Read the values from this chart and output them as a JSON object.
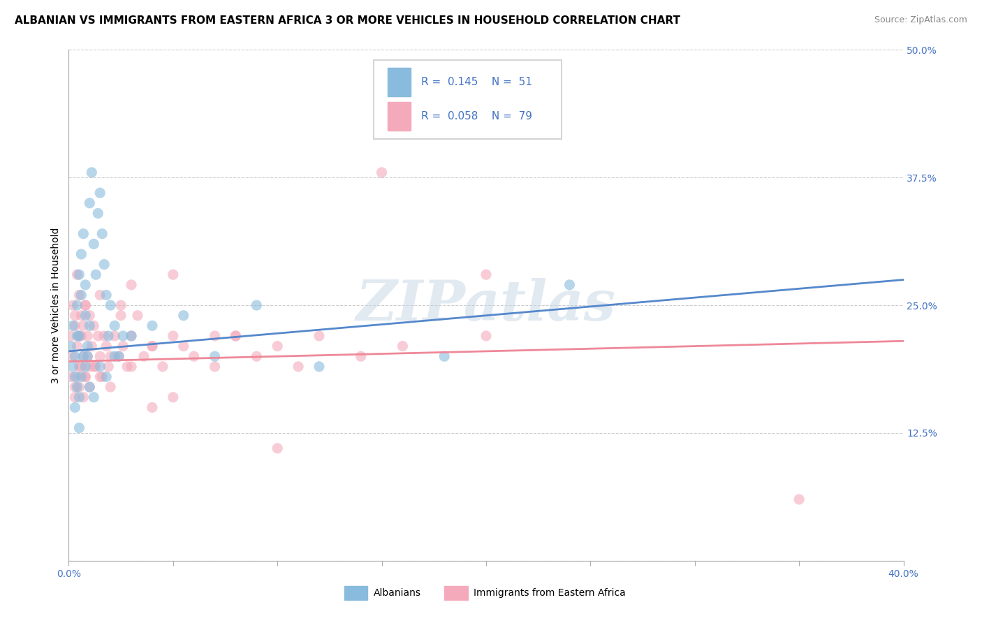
{
  "title": "ALBANIAN VS IMMIGRANTS FROM EASTERN AFRICA 3 OR MORE VEHICLES IN HOUSEHOLD CORRELATION CHART",
  "source": "Source: ZipAtlas.com",
  "ylabel": "3 or more Vehicles in Household",
  "xlim": [
    0.0,
    0.4
  ],
  "ylim": [
    0.0,
    0.5
  ],
  "xticks": [
    0.0,
    0.05,
    0.1,
    0.15,
    0.2,
    0.25,
    0.3,
    0.35,
    0.4
  ],
  "yticks": [
    0.0,
    0.125,
    0.25,
    0.375,
    0.5
  ],
  "watermark": "ZIPatlas",
  "color_blue": "#88BBDD",
  "color_pink": "#F4AABB",
  "line_blue": "#5588CC",
  "line_pink": "#EE8899",
  "legend_value_color": "#4472c4",
  "r1": "0.145",
  "n1": "51",
  "r2": "0.058",
  "n2": "79",
  "title_fontsize": 11,
  "tick_fontsize": 10,
  "label_fontsize": 10,
  "source_fontsize": 9,
  "legend_fontsize": 11,
  "alb_x": [
    0.001,
    0.002,
    0.002,
    0.003,
    0.003,
    0.004,
    0.004,
    0.005,
    0.005,
    0.006,
    0.006,
    0.007,
    0.008,
    0.008,
    0.009,
    0.01,
    0.01,
    0.011,
    0.012,
    0.013,
    0.014,
    0.015,
    0.016,
    0.017,
    0.018,
    0.019,
    0.02,
    0.022,
    0.024,
    0.026,
    0.003,
    0.004,
    0.005,
    0.006,
    0.007,
    0.008,
    0.009,
    0.01,
    0.012,
    0.015,
    0.018,
    0.022,
    0.03,
    0.04,
    0.055,
    0.07,
    0.09,
    0.12,
    0.18,
    0.24,
    0.005
  ],
  "alb_y": [
    0.21,
    0.19,
    0.23,
    0.2,
    0.18,
    0.22,
    0.25,
    0.28,
    0.22,
    0.26,
    0.3,
    0.32,
    0.27,
    0.24,
    0.2,
    0.23,
    0.35,
    0.38,
    0.31,
    0.28,
    0.34,
    0.36,
    0.32,
    0.29,
    0.26,
    0.22,
    0.25,
    0.23,
    0.2,
    0.22,
    0.15,
    0.17,
    0.16,
    0.18,
    0.2,
    0.19,
    0.21,
    0.17,
    0.16,
    0.19,
    0.18,
    0.2,
    0.22,
    0.23,
    0.24,
    0.2,
    0.25,
    0.19,
    0.2,
    0.27,
    0.13
  ],
  "ea_x": [
    0.001,
    0.001,
    0.002,
    0.002,
    0.003,
    0.003,
    0.004,
    0.004,
    0.005,
    0.005,
    0.006,
    0.006,
    0.007,
    0.007,
    0.008,
    0.008,
    0.009,
    0.009,
    0.01,
    0.01,
    0.011,
    0.012,
    0.013,
    0.014,
    0.015,
    0.016,
    0.017,
    0.018,
    0.019,
    0.02,
    0.022,
    0.024,
    0.026,
    0.028,
    0.03,
    0.033,
    0.036,
    0.04,
    0.045,
    0.05,
    0.055,
    0.06,
    0.07,
    0.08,
    0.09,
    0.1,
    0.11,
    0.12,
    0.14,
    0.16,
    0.003,
    0.004,
    0.005,
    0.006,
    0.007,
    0.008,
    0.01,
    0.012,
    0.015,
    0.02,
    0.025,
    0.03,
    0.04,
    0.05,
    0.07,
    0.1,
    0.03,
    0.05,
    0.15,
    0.2,
    0.003,
    0.005,
    0.008,
    0.015,
    0.025,
    0.04,
    0.08,
    0.2,
    0.35
  ],
  "ea_y": [
    0.22,
    0.18,
    0.25,
    0.2,
    0.23,
    0.17,
    0.28,
    0.21,
    0.26,
    0.19,
    0.22,
    0.24,
    0.2,
    0.23,
    0.25,
    0.18,
    0.22,
    0.2,
    0.19,
    0.24,
    0.21,
    0.23,
    0.19,
    0.22,
    0.2,
    0.18,
    0.22,
    0.21,
    0.19,
    0.2,
    0.22,
    0.2,
    0.21,
    0.19,
    0.22,
    0.24,
    0.2,
    0.21,
    0.19,
    0.22,
    0.21,
    0.2,
    0.19,
    0.22,
    0.2,
    0.21,
    0.19,
    0.22,
    0.2,
    0.21,
    0.16,
    0.18,
    0.17,
    0.19,
    0.16,
    0.18,
    0.17,
    0.19,
    0.18,
    0.17,
    0.25,
    0.19,
    0.21,
    0.16,
    0.22,
    0.11,
    0.27,
    0.28,
    0.38,
    0.28,
    0.24,
    0.22,
    0.25,
    0.26,
    0.24,
    0.15,
    0.22,
    0.22,
    0.06
  ]
}
